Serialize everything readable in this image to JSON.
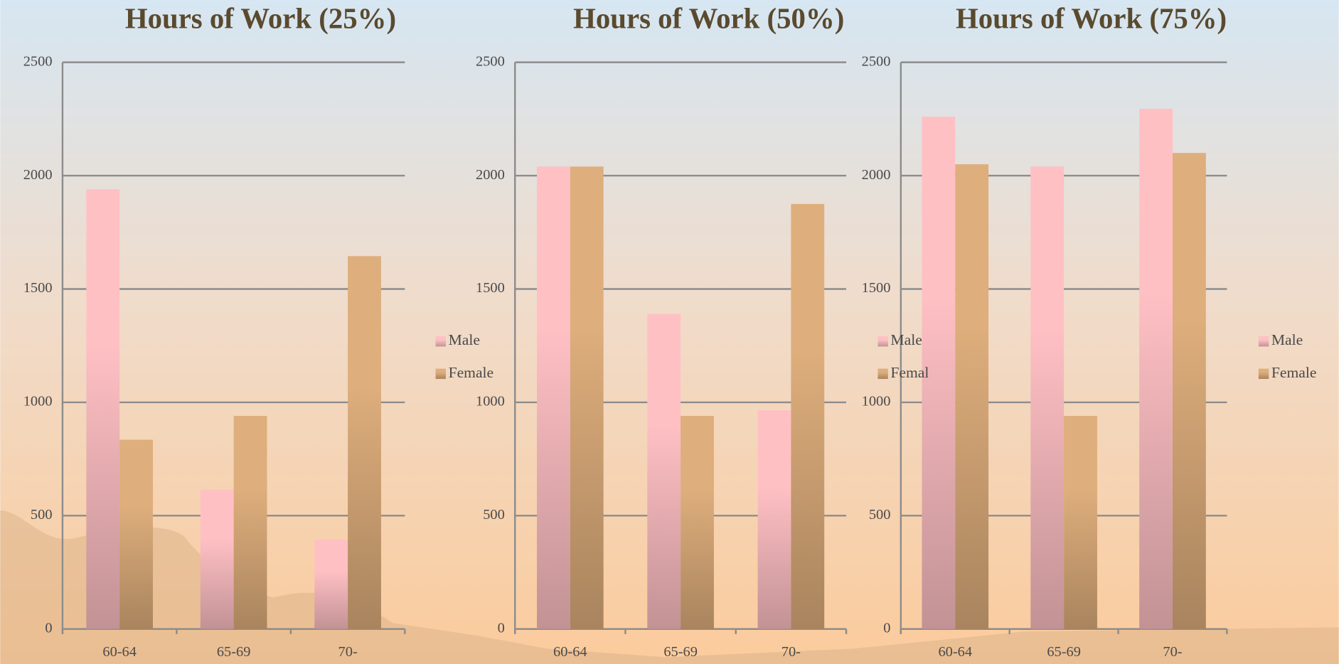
{
  "chart_data": [
    {
      "type": "bar",
      "title": "Hours of Work (25%)",
      "categories": [
        "60-64",
        "65-69",
        "70-"
      ],
      "series": [
        {
          "name": "Male",
          "color": "#ffc0c4",
          "values": [
            1940,
            615,
            395
          ]
        },
        {
          "name": "Female",
          "color": "#deae7c",
          "values": [
            835,
            940,
            1645
          ]
        }
      ],
      "ylim": [
        0,
        2500
      ],
      "yticks": [
        0,
        500,
        1000,
        1500,
        2000,
        2500
      ],
      "grid": true,
      "legend": "right"
    },
    {
      "type": "bar",
      "title": "Hours of Work (50%)",
      "categories": [
        "60-64",
        "65-69",
        "70-"
      ],
      "series": [
        {
          "name": "Male",
          "color": "#ffc0c4",
          "values": [
            2040,
            1390,
            965
          ]
        },
        {
          "name": "Female",
          "color": "#deae7c",
          "values": [
            2040,
            940,
            1875
          ]
        }
      ],
      "ylim": [
        0,
        2500
      ],
      "yticks": [
        0,
        500,
        1000,
        1500,
        2000,
        2500
      ],
      "grid": true,
      "legend": "right"
    },
    {
      "type": "bar",
      "title": "Hours of Work (75%)",
      "categories": [
        "60-64",
        "65-69",
        "70-"
      ],
      "series": [
        {
          "name": "Male",
          "color": "#ffc0c4",
          "values": [
            2260,
            2040,
            2295
          ]
        },
        {
          "name": "Female",
          "color": "#deae7c",
          "values": [
            2050,
            940,
            2100
          ]
        }
      ],
      "ylim": [
        0,
        2500
      ],
      "yticks": [
        0,
        500,
        1000,
        1500,
        2000,
        2500
      ],
      "grid": true,
      "legend": "right"
    }
  ]
}
